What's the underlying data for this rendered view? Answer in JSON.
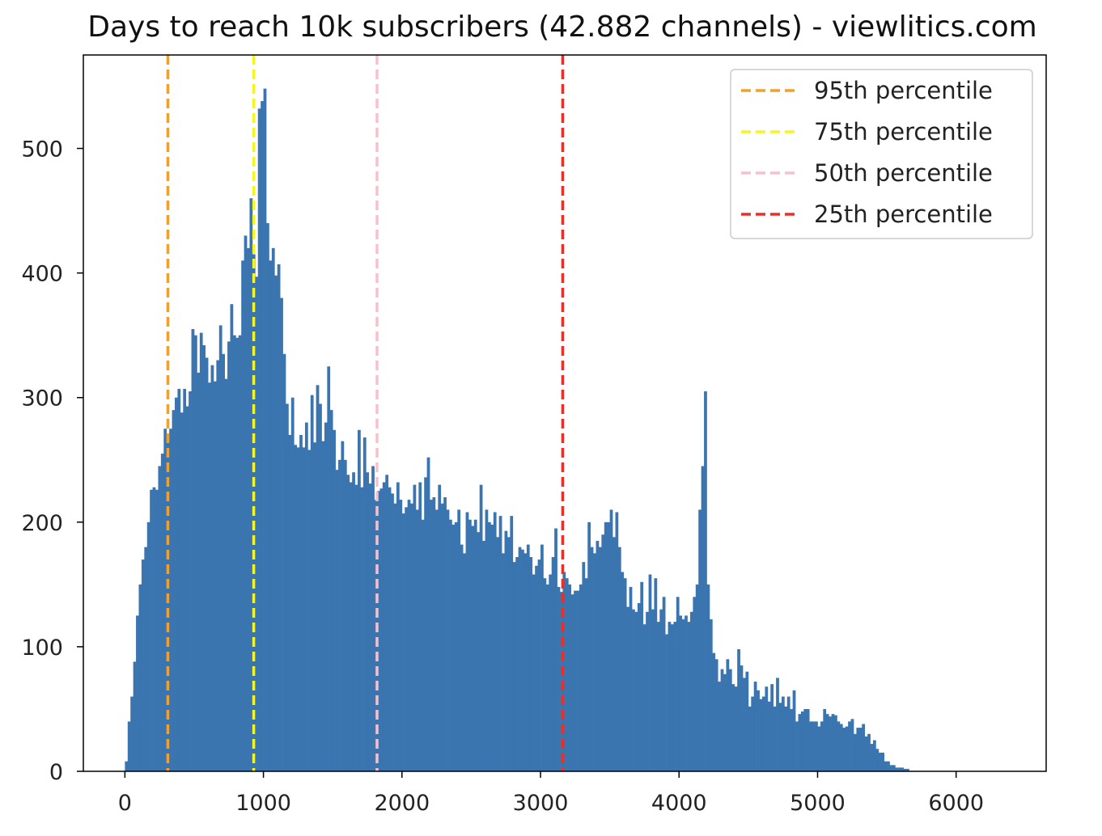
{
  "chart_data": {
    "type": "bar",
    "title": "Days to reach 10k subscribers (42.882 channels) - viewlitics.com",
    "xlabel": "",
    "ylabel": "",
    "xlim": [
      -300,
      6650
    ],
    "ylim": [
      0,
      575
    ],
    "xticks": [
      0,
      1000,
      2000,
      3000,
      4000,
      5000,
      6000
    ],
    "xtick_labels": [
      "0",
      "1000",
      "2000",
      "3000",
      "4000",
      "5000",
      "6000"
    ],
    "yticks": [
      0,
      100,
      200,
      300,
      400,
      500
    ],
    "ytick_labels": [
      "0",
      "100",
      "200",
      "300",
      "400",
      "500"
    ],
    "bin_start": 0,
    "bin_width": 20,
    "bar_color": "#3a75b0",
    "counts": [
      8,
      40,
      60,
      88,
      125,
      150,
      170,
      180,
      200,
      226,
      228,
      226,
      245,
      255,
      275,
      265,
      275,
      290,
      300,
      307,
      288,
      307,
      293,
      305,
      355,
      350,
      320,
      352,
      342,
      332,
      312,
      326,
      313,
      330,
      358,
      335,
      315,
      345,
      375,
      350,
      348,
      350,
      410,
      430,
      420,
      460,
      415,
      397,
      532,
      538,
      548,
      440,
      410,
      420,
      398,
      407,
      380,
      335,
      295,
      270,
      300,
      262,
      260,
      270,
      260,
      280,
      258,
      302,
      264,
      310,
      295,
      265,
      280,
      325,
      290,
      274,
      242,
      250,
      265,
      250,
      238,
      232,
      240,
      230,
      274,
      228,
      268,
      240,
      231,
      245,
      218,
      225,
      227,
      232,
      238,
      228,
      223,
      215,
      232,
      218,
      207,
      212,
      218,
      215,
      230,
      210,
      232,
      202,
      236,
      252,
      218,
      220,
      210,
      230,
      215,
      220,
      210,
      202,
      198,
      200,
      210,
      182,
      175,
      208,
      202,
      197,
      202,
      192,
      230,
      185,
      210,
      200,
      198,
      208,
      188,
      205,
      175,
      193,
      188,
      205,
      168,
      172,
      180,
      178,
      175,
      182,
      172,
      158,
      165,
      170,
      182,
      155,
      150,
      158,
      172,
      195,
      148,
      144,
      160,
      155,
      150,
      142,
      145,
      145,
      150,
      168,
      155,
      200,
      180,
      175,
      185,
      180,
      190,
      200,
      200,
      210,
      188,
      208,
      180,
      160,
      155,
      132,
      148,
      130,
      128,
      135,
      152,
      118,
      128,
      158,
      130,
      155,
      120,
      130,
      140,
      110,
      120,
      118,
      120,
      140,
      125,
      122,
      125,
      120,
      128,
      140,
      150,
      210,
      245,
      305,
      150,
      122,
      95,
      90,
      72,
      82,
      78,
      90,
      82,
      70,
      68,
      98,
      85,
      75,
      80,
      52,
      60,
      72,
      65,
      58,
      60,
      68,
      56,
      70,
      52,
      75,
      55,
      60,
      52,
      60,
      50,
      65,
      40,
      46,
      48,
      50,
      50,
      40,
      40,
      40,
      36,
      40,
      50,
      46,
      44,
      46,
      45,
      40,
      38,
      35,
      36,
      40,
      42,
      30,
      35,
      35,
      38,
      28,
      30,
      22,
      25,
      18,
      15,
      15,
      8,
      8,
      5,
      5,
      3,
      3,
      3,
      2,
      2
    ],
    "reference_lines": [
      {
        "name": "95th percentile",
        "x": 310,
        "color": "#f0a030"
      },
      {
        "name": "75th percentile",
        "x": 930,
        "color": "#f5f520"
      },
      {
        "name": "50th percentile",
        "x": 1820,
        "color": "#f8c0cc"
      },
      {
        "name": "25th percentile",
        "x": 3160,
        "color": "#e8302a"
      }
    ],
    "legend_placement": "top-right",
    "grid": false
  }
}
